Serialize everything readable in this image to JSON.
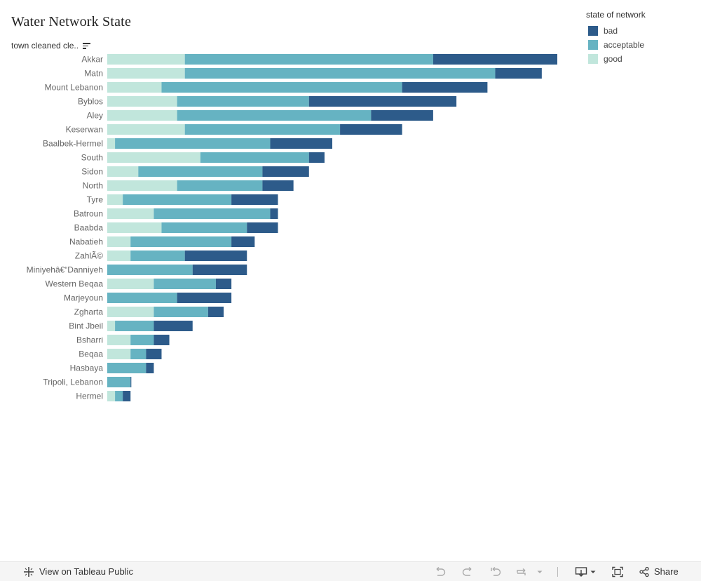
{
  "dashboard": {
    "title": "Water Network State"
  },
  "chart_data": {
    "type": "bar",
    "orientation": "horizontal",
    "stacked": true,
    "row_header": "town cleaned cle..",
    "sorted": "descending",
    "grid": false,
    "x_axis_visible": false,
    "categories": [
      "Akkar",
      "Matn",
      "Mount Lebanon",
      "Byblos",
      "Aley",
      "Keserwan",
      "Baalbek-Hermel",
      "South",
      "Sidon",
      "North",
      "Tyre",
      "Batroun",
      "Baabda",
      "Nabatieh",
      "ZahlÃ©",
      "Miniyehâ€“Danniyeh",
      "Western Beqaa",
      "Marjeyoun",
      "Zgharta",
      "Bint Jbeil",
      "Bsharri",
      "Beqaa",
      "Hasbaya",
      "Tripoli, Lebanon",
      "Hermel"
    ],
    "series": [
      {
        "name": "good",
        "color": "#c1e6dc",
        "values": [
          10,
          10,
          7,
          9,
          9,
          10,
          1,
          12,
          4,
          9,
          2,
          6,
          7,
          3,
          3,
          0,
          6,
          0,
          6,
          1,
          3,
          3,
          0,
          0,
          1
        ]
      },
      {
        "name": "acceptable",
        "color": "#66b3c2",
        "values": [
          32,
          40,
          31,
          17,
          25,
          20,
          20,
          14,
          16,
          11,
          14,
          15,
          11,
          13,
          7,
          11,
          8,
          9,
          7,
          5,
          3,
          2,
          5,
          3,
          1
        ]
      },
      {
        "name": "bad",
        "color": "#2d5b8a",
        "values": [
          16,
          6,
          11,
          19,
          8,
          8,
          8,
          2,
          6,
          4,
          6,
          1,
          4,
          3,
          8,
          7,
          2,
          7,
          2,
          5,
          2,
          2,
          1,
          0.1,
          1
        ]
      }
    ],
    "xlim": [
      0,
      58
    ],
    "legend": {
      "title": "state of network",
      "position": "top-right",
      "order": [
        "bad",
        "acceptable",
        "good"
      ]
    }
  },
  "toolbar": {
    "view_label": "View on Tableau Public",
    "share_label": "Share",
    "icons": [
      "tableau-logo",
      "undo",
      "redo",
      "revert",
      "refresh",
      "download",
      "fullscreen",
      "share"
    ]
  }
}
